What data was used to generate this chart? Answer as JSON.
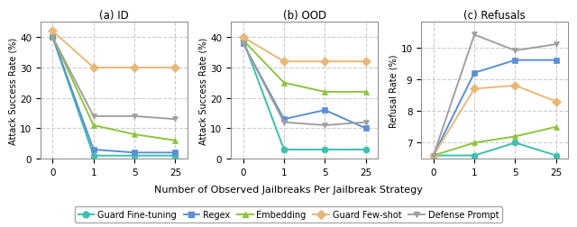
{
  "x_positions": [
    0,
    1,
    2,
    3
  ],
  "x_labels": [
    "0",
    "1",
    "5",
    "25"
  ],
  "panels": [
    {
      "title": "(a) ID",
      "ylabel": "Attack Success Rate (%)",
      "ylim": [
        0,
        45
      ],
      "yticks": [
        0,
        10,
        20,
        30,
        40
      ],
      "series": {
        "Guard Fine-tuning": [
          40,
          1,
          1,
          1
        ],
        "Regex": [
          40,
          3,
          2,
          2
        ],
        "Embedding": [
          40,
          11,
          8,
          6
        ],
        "Guard Few-shot": [
          42,
          30,
          30,
          30
        ],
        "Defense Prompt": [
          40,
          14,
          14,
          13
        ]
      }
    },
    {
      "title": "(b) OOD",
      "ylabel": "Attack Success Rate (%)",
      "ylim": [
        0,
        45
      ],
      "yticks": [
        0,
        10,
        20,
        30,
        40
      ],
      "series": {
        "Guard Fine-tuning": [
          39,
          3,
          3,
          3
        ],
        "Regex": [
          38,
          13,
          16,
          10
        ],
        "Embedding": [
          39,
          25,
          22,
          22
        ],
        "Guard Few-shot": [
          40,
          32,
          32,
          32
        ],
        "Defense Prompt": [
          38,
          12,
          11,
          12
        ]
      }
    },
    {
      "title": "(c) Refusals",
      "ylabel": "Refusal Rate (%)",
      "ylim": [
        6.5,
        10.8
      ],
      "yticks": [
        7,
        8,
        9,
        10
      ],
      "series": {
        "Guard Fine-tuning": [
          6.6,
          6.6,
          7.0,
          6.6
        ],
        "Regex": [
          6.6,
          9.2,
          9.6,
          9.6
        ],
        "Embedding": [
          6.6,
          7.0,
          7.2,
          7.5
        ],
        "Guard Few-shot": [
          6.6,
          8.7,
          8.8,
          8.3
        ],
        "Defense Prompt": [
          6.6,
          10.4,
          9.9,
          10.1
        ]
      }
    }
  ],
  "series_styles": {
    "Guard Fine-tuning": {
      "color": "#3dbfad",
      "marker": "o",
      "markersize": 5
    },
    "Regex": {
      "color": "#5b8fd4",
      "marker": "s",
      "markersize": 5
    },
    "Embedding": {
      "color": "#8cc43f",
      "marker": "^",
      "markersize": 5
    },
    "Guard Few-shot": {
      "color": "#e8b87a",
      "marker": "D",
      "markersize": 5
    },
    "Defense Prompt": {
      "color": "#a0a0a0",
      "marker": "v",
      "markersize": 5
    }
  },
  "xlabel": "Number of Observed Jailbreaks Per Jailbreak Strategy",
  "legend_order": [
    "Guard Fine-tuning",
    "Regex",
    "Embedding",
    "Guard Few-shot",
    "Defense Prompt"
  ],
  "background_color": "#ffffff",
  "grid_color": "#cccccc"
}
